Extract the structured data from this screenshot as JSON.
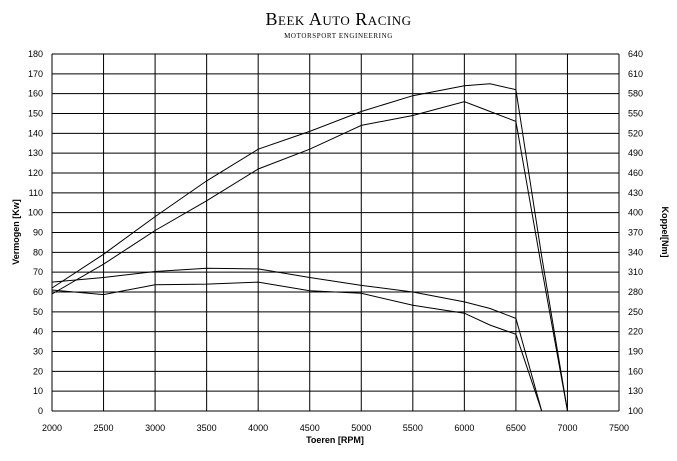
{
  "logo": {
    "title": "Beek Auto Racing",
    "subtitle": "MOTORSPORT ENGINEERING"
  },
  "chart_data": {
    "type": "line",
    "title": "",
    "xlabel": "Toeren [RPM]",
    "ylabel_left": "Vermogen [Kw]",
    "ylabel_right": "Koppel[Nm]",
    "xlim": [
      2000,
      7500
    ],
    "ylim_left": [
      0,
      180
    ],
    "ylim_right": [
      100,
      640
    ],
    "xticks": [
      2000,
      2500,
      3000,
      3500,
      4000,
      4500,
      5000,
      5500,
      6000,
      6500,
      7000,
      7500
    ],
    "yticks_left": [
      0,
      10,
      20,
      30,
      40,
      50,
      60,
      70,
      80,
      90,
      100,
      110,
      120,
      130,
      140,
      150,
      160,
      170,
      180
    ],
    "yticks_right": [
      100,
      130,
      160,
      190,
      220,
      250,
      280,
      310,
      340,
      370,
      400,
      430,
      460,
      490,
      520,
      550,
      580,
      610,
      640
    ],
    "grid": true,
    "series": [
      {
        "axis": "left",
        "x": [
          2000,
          2500,
          3000,
          3500,
          4000,
          4500,
          5000,
          5500,
          6000,
          6250,
          6500,
          6750,
          7000,
          7500
        ],
        "values": [
          62,
          79,
          98,
          116,
          132,
          141,
          151,
          159,
          164,
          165,
          162,
          78,
          0,
          0
        ]
      },
      {
        "axis": "left",
        "x": [
          2000,
          2500,
          3000,
          3500,
          4000,
          4500,
          5000,
          5500,
          6000,
          6250,
          6500,
          6750,
          7000,
          7500
        ],
        "values": [
          59,
          74,
          91,
          106,
          122,
          132,
          144,
          149,
          156,
          151,
          146,
          72,
          0,
          0
        ]
      },
      {
        "axis": "right",
        "x": [
          2000,
          2500,
          3000,
          3500,
          4000,
          4500,
          5000,
          5500,
          6000,
          6250,
          6500,
          6750
        ],
        "values": [
          295,
          302,
          311,
          316,
          315,
          302,
          290,
          280,
          265,
          255,
          240,
          100
        ]
      },
      {
        "axis": "right",
        "x": [
          2000,
          2500,
          3000,
          3500,
          4000,
          4500,
          5000,
          5500,
          6000,
          6250,
          6500,
          6750
        ],
        "values": [
          283,
          276,
          291,
          292,
          295,
          282,
          278,
          260,
          248,
          230,
          216,
          100
        ]
      }
    ]
  }
}
